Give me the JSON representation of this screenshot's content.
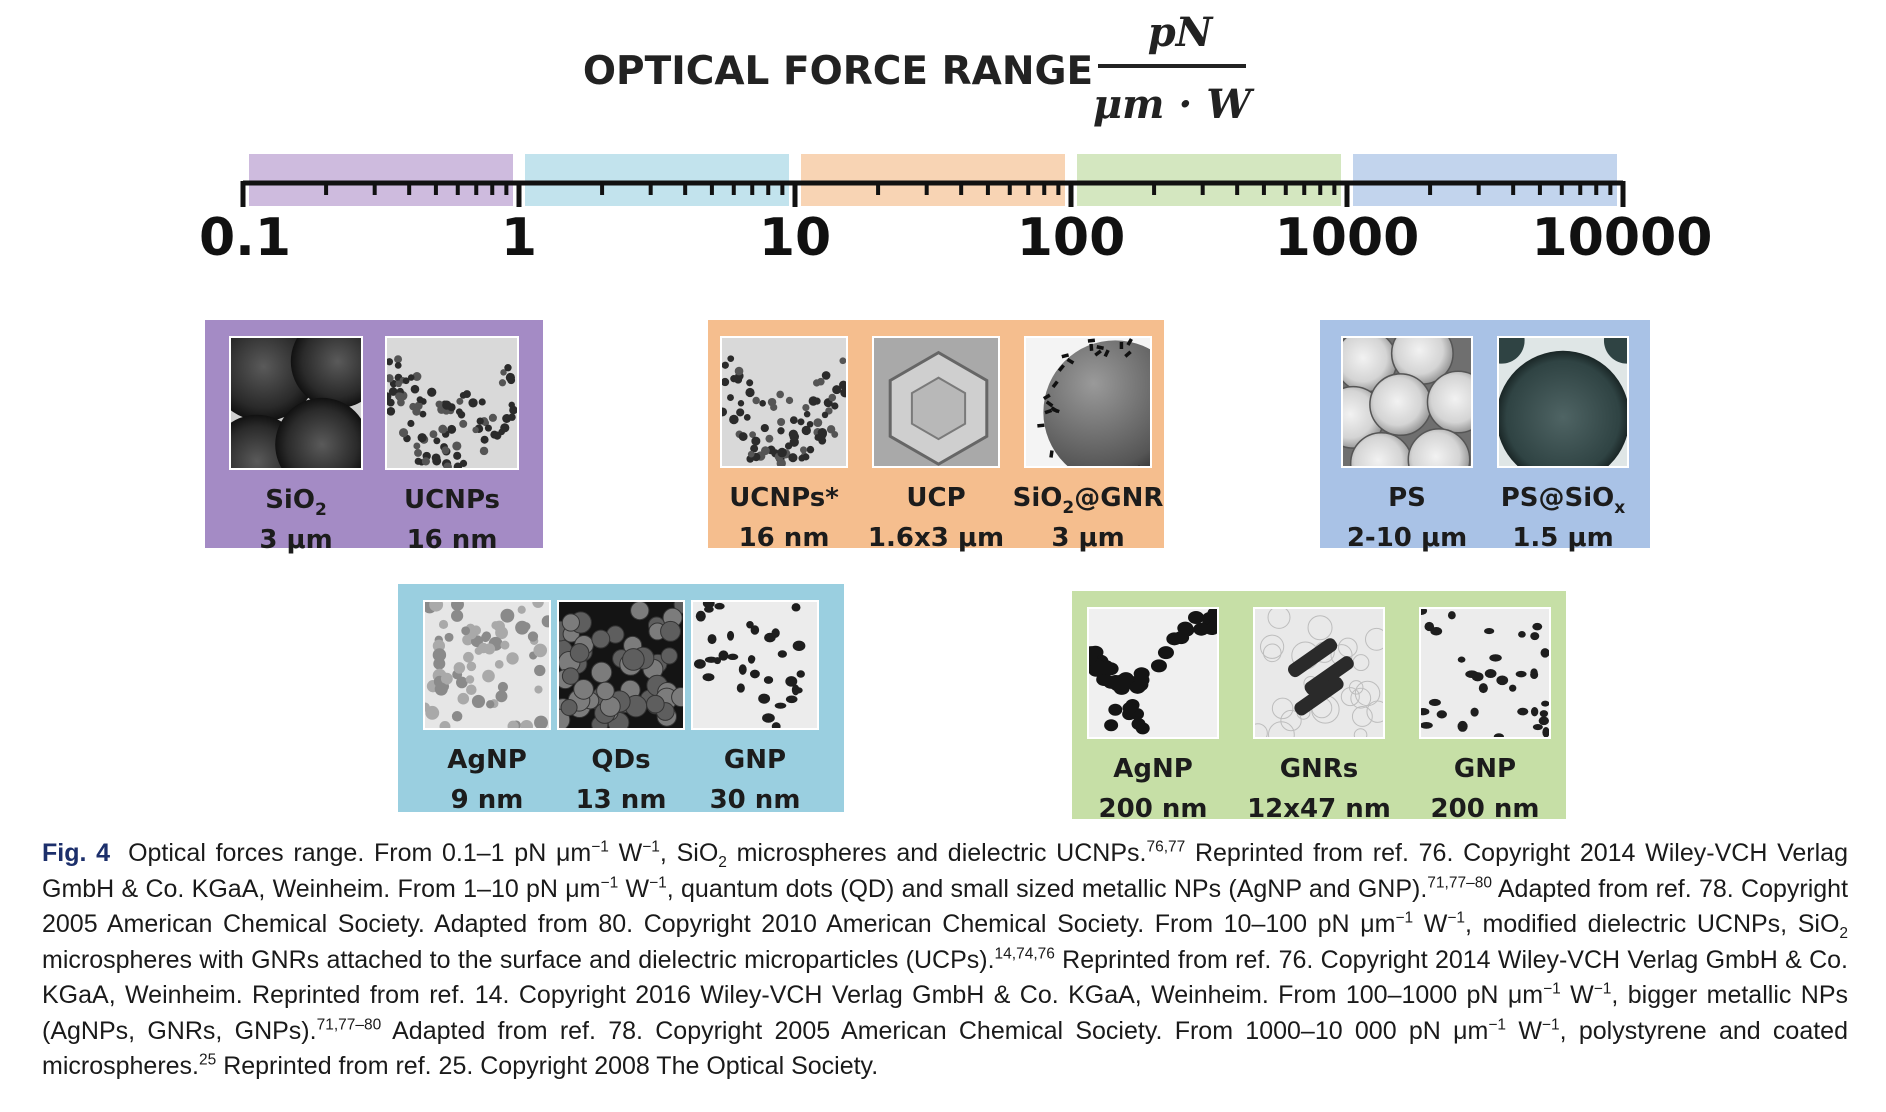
{
  "header": {
    "title": "OPTICAL FORCE RANGE",
    "unit_numerator": "pN",
    "unit_denominator": "μm · W"
  },
  "scale": {
    "tick_labels": [
      "0.1",
      "1",
      "10",
      "100",
      "1000",
      "10000"
    ],
    "band_colors": [
      "#cbb7dc",
      "#bfe1ec",
      "#f8d2b0",
      "#d2e6bd",
      "#bfd2ec"
    ]
  },
  "panels": [
    {
      "id": "decade-0.1-1",
      "color": "#a48bc5",
      "items": [
        {
          "name": "SiO",
          "sub": "2",
          "size": "3 μm",
          "image": "large-silica-spheres"
        },
        {
          "name": "UCNPs",
          "sub": "",
          "size": "16 nm",
          "image": "small-dark-nanoparticles"
        }
      ]
    },
    {
      "id": "decade-10-100",
      "color": "#f5be8e",
      "items": [
        {
          "name": "UCNPs*",
          "sub": "",
          "size": "16 nm",
          "image": "small-dark-nanoparticles"
        },
        {
          "name": "UCP",
          "sub": "",
          "size": "1.6x3 μm",
          "image": "hexagonal-prism"
        },
        {
          "name": "SiO",
          "sub": "2",
          "suffix": "@GNR",
          "size": "3 μm",
          "image": "sphere-with-rods"
        }
      ]
    },
    {
      "id": "decade-1000-10000",
      "color": "#a9c2e6",
      "items": [
        {
          "name": "PS",
          "sub": "",
          "size": "2-10 μm",
          "image": "polystyrene-spheres"
        },
        {
          "name": "PS@SiO",
          "sub": "x",
          "size": "1.5 μm",
          "image": "coated-sphere"
        }
      ]
    },
    {
      "id": "decade-1-10",
      "color": "#9acfe0",
      "items": [
        {
          "name": "AgNP",
          "sub": "",
          "size": "9 nm",
          "image": "grey-nanoparticles"
        },
        {
          "name": "QDs",
          "sub": "",
          "size": "13 nm",
          "image": "quantum-dots"
        },
        {
          "name": "GNP",
          "sub": "",
          "size": "30 nm",
          "image": "sparse-particles"
        }
      ]
    },
    {
      "id": "decade-100-1000",
      "color": "#c6dfa6",
      "items": [
        {
          "name": "AgNP",
          "sub": "",
          "size": "200 nm",
          "image": "particle-chains"
        },
        {
          "name": "GNRs",
          "sub": "",
          "size": "12x47 nm",
          "image": "nanorods"
        },
        {
          "name": "GNP",
          "sub": "",
          "size": "200 nm",
          "image": "sparse-particles"
        }
      ]
    }
  ],
  "caption": {
    "label": "Fig. 4",
    "segments": [
      {
        "t": "Optical forces range. From 0.1–1 pN μm"
      },
      {
        "t": "−1",
        "s": "sup"
      },
      {
        "t": " W"
      },
      {
        "t": "−1",
        "s": "sup"
      },
      {
        "t": ", SiO"
      },
      {
        "t": "2",
        "s": "sub"
      },
      {
        "t": " microspheres and dielectric UCNPs."
      },
      {
        "t": "76,77",
        "s": "sup"
      },
      {
        "t": " Reprinted from ref. 76. Copyright 2014 Wiley-VCH Verlag GmbH & Co. KGaA, Weinheim. From 1–10 pN μm"
      },
      {
        "t": "−1",
        "s": "sup"
      },
      {
        "t": " W"
      },
      {
        "t": "−1",
        "s": "sup"
      },
      {
        "t": ", quantum dots (QD) and small sized metallic NPs (AgNP and GNP)."
      },
      {
        "t": "71,77–80",
        "s": "sup"
      },
      {
        "t": " Adapted from ref. 78. Copyright 2005 American Chemical Society. Adapted from 80. Copyright 2010 American Chemical Society. From 10–100 pN μm"
      },
      {
        "t": "−1",
        "s": "sup"
      },
      {
        "t": " W"
      },
      {
        "t": "−1",
        "s": "sup"
      },
      {
        "t": ", modified dielectric UCNPs, SiO"
      },
      {
        "t": "2",
        "s": "sub"
      },
      {
        "t": " microspheres with GNRs attached to the surface and dielectric microparticles (UCPs)."
      },
      {
        "t": "14,74,76",
        "s": "sup"
      },
      {
        "t": " Reprinted from ref. 76. Copyright 2014 Wiley-VCH Verlag GmbH & Co. KGaA, Weinheim. Reprinted from ref. 14. Copyright 2016 Wiley-VCH Verlag GmbH & Co. KGaA, Weinheim. From 100–1000 pN μm"
      },
      {
        "t": "−1",
        "s": "sup"
      },
      {
        "t": " W"
      },
      {
        "t": "−1",
        "s": "sup"
      },
      {
        "t": ", bigger metallic NPs (AgNPs, GNRs, GNPs)."
      },
      {
        "t": "71,77–80",
        "s": "sup"
      },
      {
        "t": " Adapted from ref. 78. Copyright 2005 American Chemical Society. From 1000–10 000 pN μm"
      },
      {
        "t": "−1",
        "s": "sup"
      },
      {
        "t": " W"
      },
      {
        "t": "−1",
        "s": "sup"
      },
      {
        "t": ", polystyrene and coated microspheres."
      },
      {
        "t": "25",
        "s": "sup"
      },
      {
        "t": " Reprinted from ref. 25. Copyright 2008 The Optical Society."
      }
    ]
  }
}
